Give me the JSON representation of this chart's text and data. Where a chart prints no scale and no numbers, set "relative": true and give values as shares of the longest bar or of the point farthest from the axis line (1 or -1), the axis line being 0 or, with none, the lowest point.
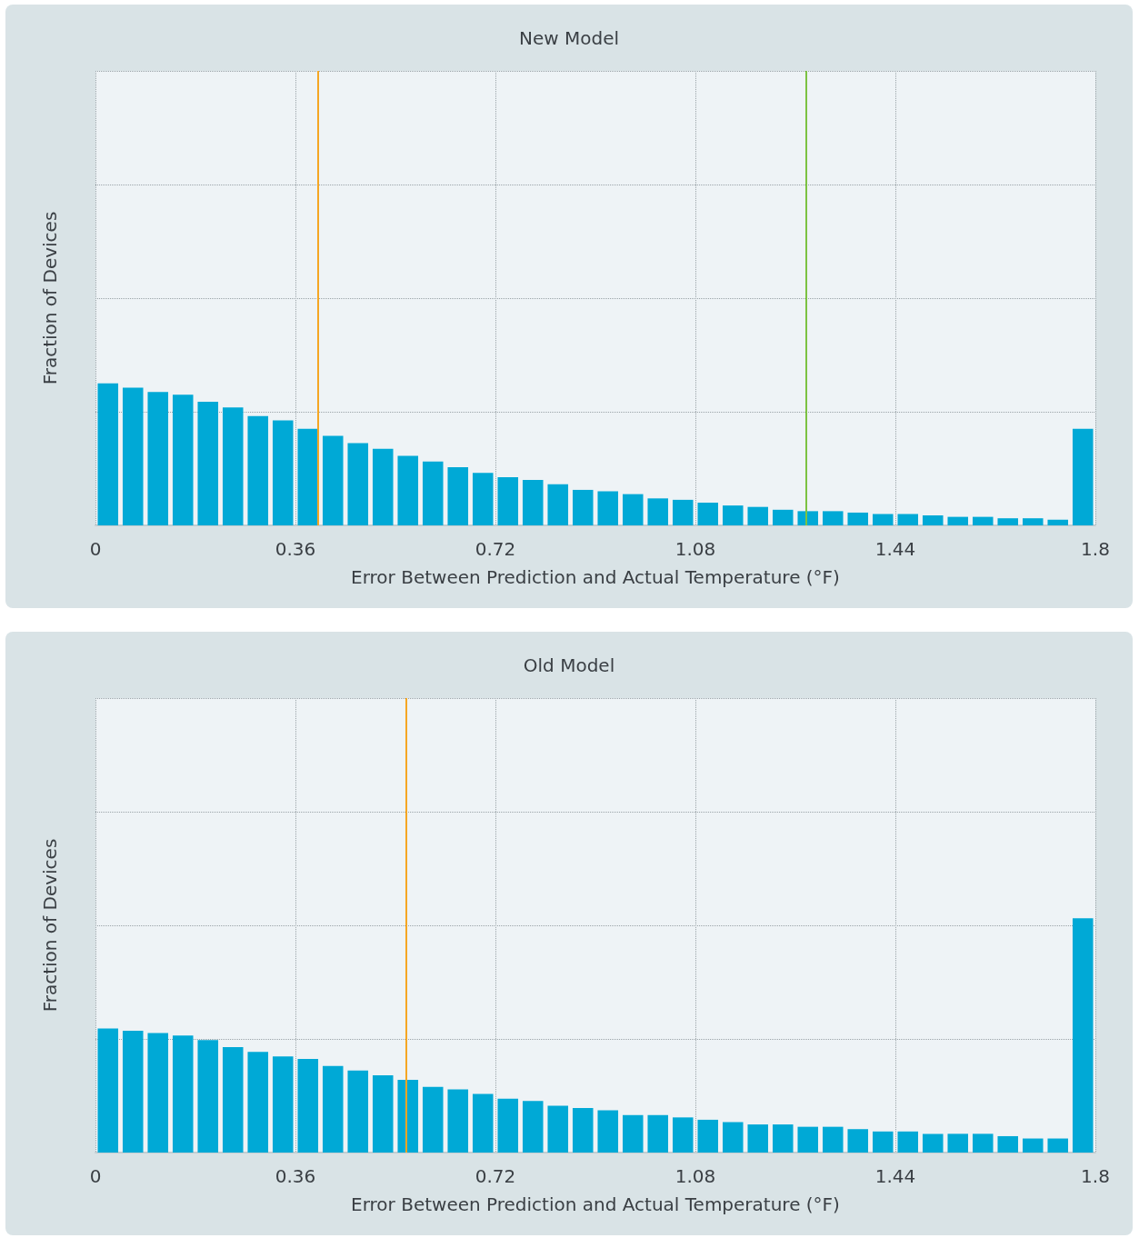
{
  "chart_data": [
    {
      "type": "bar",
      "title": "New Model",
      "xlabel": "Error Between Prediction and Actual Temperature (°F)",
      "ylabel": "Fraction of Devices",
      "relative": true,
      "color": "#00a9d6",
      "x": [
        0.0225,
        0.0675,
        0.1125,
        0.1575,
        0.2025,
        0.2475,
        0.2925,
        0.3375,
        0.3825,
        0.4275,
        0.4725,
        0.5175,
        0.5625,
        0.6075,
        0.6525,
        0.6975,
        0.7425,
        0.7875,
        0.8325,
        0.8775,
        0.9225,
        0.9675,
        1.0125,
        1.0575,
        1.1025,
        1.1475,
        1.1925,
        1.2375,
        1.2825,
        1.3275,
        1.3725,
        1.4175,
        1.4625,
        1.5075,
        1.5525,
        1.5975,
        1.6425,
        1.6875,
        1.7325,
        1.7775
      ],
      "values": [
        1.0,
        0.97,
        0.94,
        0.92,
        0.87,
        0.83,
        0.77,
        0.74,
        0.68,
        0.63,
        0.58,
        0.54,
        0.49,
        0.45,
        0.41,
        0.37,
        0.34,
        0.32,
        0.29,
        0.25,
        0.24,
        0.22,
        0.19,
        0.18,
        0.16,
        0.14,
        0.13,
        0.11,
        0.1,
        0.1,
        0.09,
        0.08,
        0.08,
        0.07,
        0.06,
        0.06,
        0.05,
        0.05,
        0.04,
        0.68
      ],
      "xlim": [
        0,
        1.8
      ],
      "xticks": [
        0,
        0.36,
        0.72,
        1.08,
        1.44,
        1.8
      ],
      "grid": true,
      "ref_lines": [
        {
          "axis": "x",
          "value": 0.404,
          "color": "#f5a623"
        },
        {
          "axis": "x",
          "value": 1.28,
          "color": "#7cc242"
        }
      ]
    },
    {
      "type": "bar",
      "title": "Old Model",
      "xlabel": "Error Between Prediction and Actual Temperature (°F)",
      "ylabel": "Fraction of Devices",
      "relative": true,
      "color": "#00a9d6",
      "x": [
        0.0225,
        0.0675,
        0.1125,
        0.1575,
        0.2025,
        0.2475,
        0.2925,
        0.3375,
        0.3825,
        0.4275,
        0.4725,
        0.5175,
        0.5625,
        0.6075,
        0.6525,
        0.6975,
        0.7425,
        0.7875,
        0.8325,
        0.8775,
        0.9225,
        0.9675,
        1.0125,
        1.0575,
        1.1025,
        1.1475,
        1.1925,
        1.2375,
        1.2825,
        1.3275,
        1.3725,
        1.4175,
        1.4625,
        1.5075,
        1.5525,
        1.5975,
        1.6425,
        1.6875,
        1.7325,
        1.7775
      ],
      "values": [
        0.53,
        0.52,
        0.51,
        0.5,
        0.48,
        0.45,
        0.43,
        0.41,
        0.4,
        0.37,
        0.35,
        0.33,
        0.31,
        0.28,
        0.27,
        0.25,
        0.23,
        0.22,
        0.2,
        0.19,
        0.18,
        0.16,
        0.16,
        0.15,
        0.14,
        0.13,
        0.12,
        0.12,
        0.11,
        0.11,
        0.1,
        0.09,
        0.09,
        0.08,
        0.08,
        0.08,
        0.07,
        0.06,
        0.06,
        1.0
      ],
      "xlim": [
        0,
        1.8
      ],
      "xticks": [
        0,
        0.36,
        0.72,
        1.08,
        1.44,
        1.8
      ],
      "grid": true,
      "ref_lines": [
        {
          "axis": "x",
          "value": 0.561,
          "color": "#f5a623"
        }
      ]
    }
  ]
}
